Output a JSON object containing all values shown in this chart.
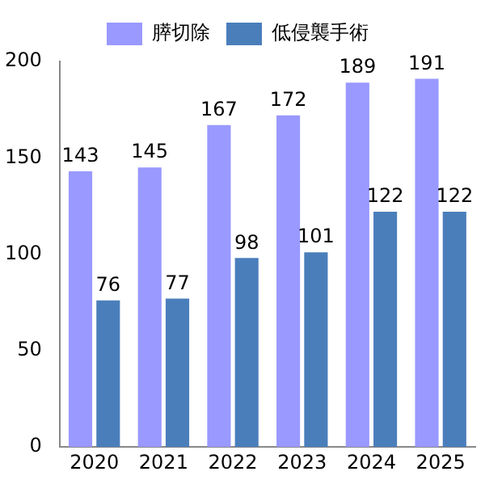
{
  "chart_data": {
    "type": "bar",
    "categories": [
      "2020",
      "2021",
      "2022",
      "2023",
      "2024",
      "2025"
    ],
    "series": [
      {
        "name": "膵切除",
        "color": "#9999ff",
        "values": [
          143,
          145,
          167,
          172,
          189,
          191
        ]
      },
      {
        "name": "低侵襲手術",
        "color": "#4a7ebb",
        "values": [
          76,
          77,
          98,
          101,
          122,
          122
        ]
      }
    ],
    "ylim": [
      0,
      200
    ],
    "yticks": [
      0,
      50,
      100,
      150,
      200
    ],
    "grid": false,
    "legend": "top",
    "data_labels": true
  }
}
